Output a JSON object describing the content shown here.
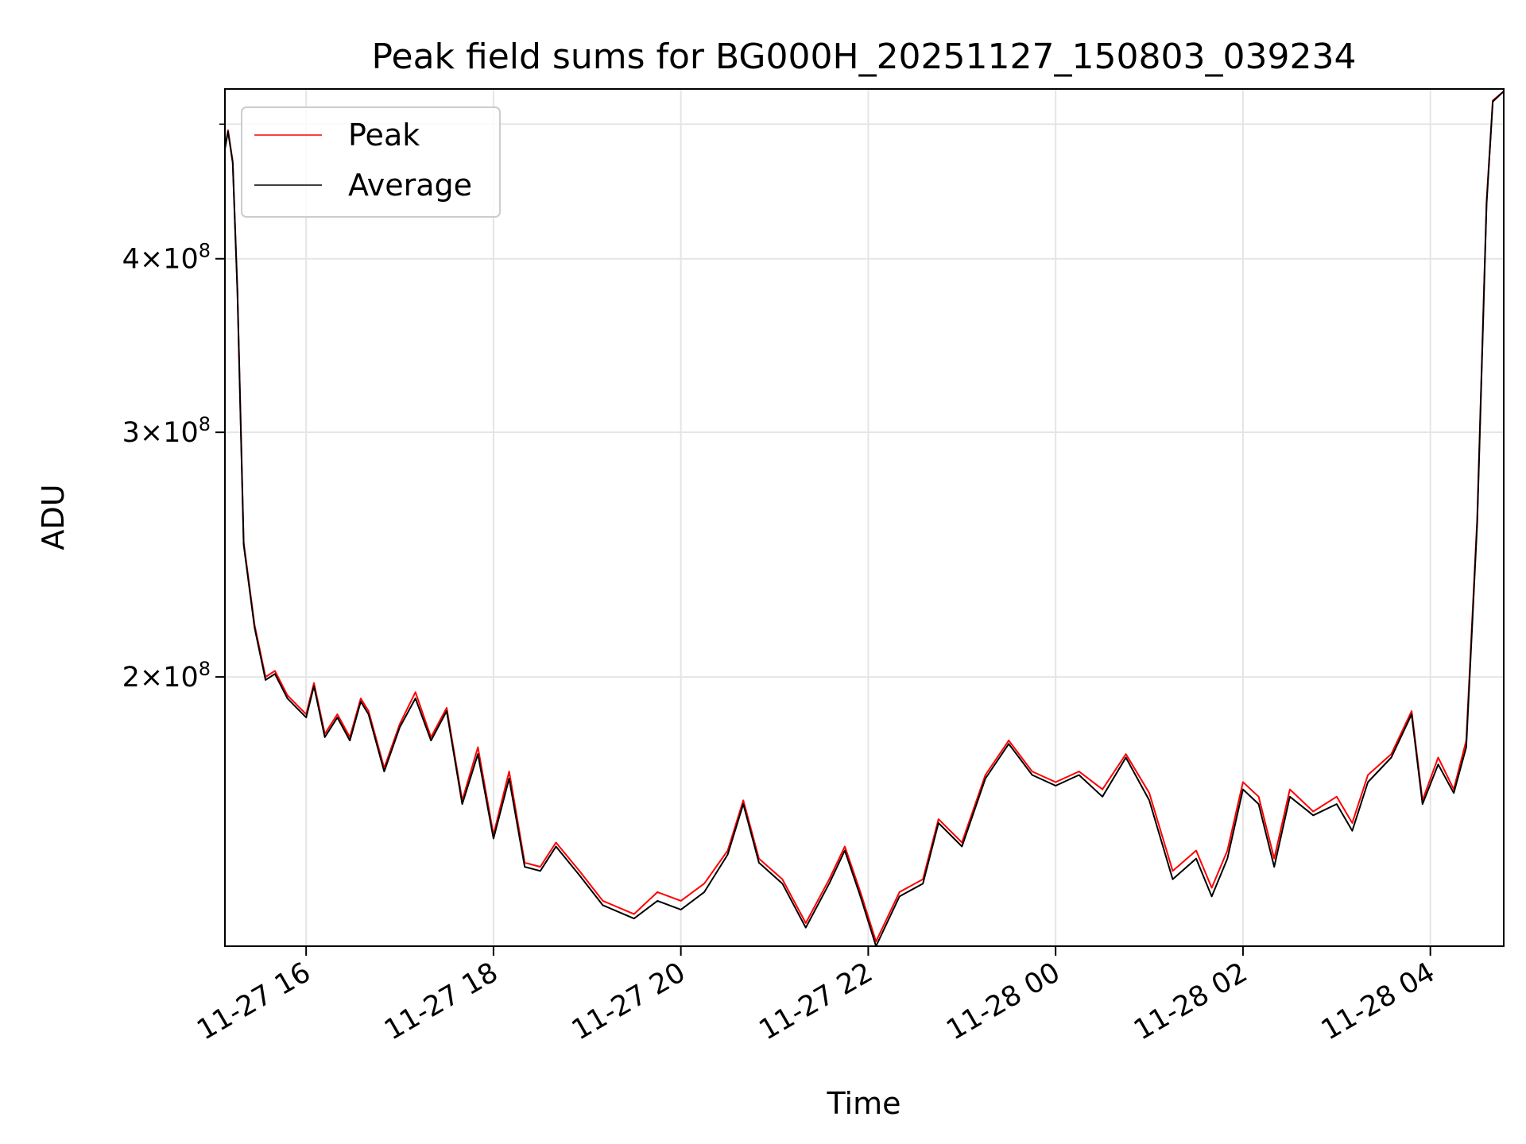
{
  "chart_data": {
    "type": "line",
    "title": "Peak field sums for BG000H_20251127_150803_039234",
    "xlabel": "Time",
    "ylabel": "ADU",
    "yscale": "log",
    "ylim": [
      128000000,
      530000000
    ],
    "xlim": [
      "2025-11-27T15:08",
      "2025-11-28T04:47"
    ],
    "grid": true,
    "legend_position": "upper left",
    "x_ticks": [
      {
        "value": "2025-11-27T16:00",
        "label": "11-27 16"
      },
      {
        "value": "2025-11-27T18:00",
        "label": "11-27 18"
      },
      {
        "value": "2025-11-27T20:00",
        "label": "11-27 20"
      },
      {
        "value": "2025-11-27T22:00",
        "label": "11-27 22"
      },
      {
        "value": "2025-11-28T00:00",
        "label": "11-28 00"
      },
      {
        "value": "2025-11-28T02:00",
        "label": "11-28 02"
      },
      {
        "value": "2025-11-28T04:00",
        "label": "11-28 04"
      }
    ],
    "y_ticks": [
      {
        "value": 200000000,
        "mantissa": "2",
        "exponent": "8"
      },
      {
        "value": 300000000,
        "mantissa": "3",
        "exponent": "8"
      },
      {
        "value": 400000000,
        "mantissa": "4",
        "exponent": "8"
      }
    ],
    "series": [
      {
        "name": "Peak",
        "color": "#ff0000",
        "points": [
          [
            "2025-11-27T15:08",
            480000000
          ],
          [
            "2025-11-27T15:10",
            495000000
          ],
          [
            "2025-11-27T15:13",
            470000000
          ],
          [
            "2025-11-27T15:16",
            380000000
          ],
          [
            "2025-11-27T15:20",
            250000000
          ],
          [
            "2025-11-27T15:27",
            218000000
          ],
          [
            "2025-11-27T15:34",
            200000000
          ],
          [
            "2025-11-27T15:40",
            202000000
          ],
          [
            "2025-11-27T15:48",
            194000000
          ],
          [
            "2025-11-27T16:00",
            188000000
          ],
          [
            "2025-11-27T16:05",
            198000000
          ],
          [
            "2025-11-27T16:12",
            182000000
          ],
          [
            "2025-11-27T16:20",
            188000000
          ],
          [
            "2025-11-27T16:28",
            181000000
          ],
          [
            "2025-11-27T16:35",
            193000000
          ],
          [
            "2025-11-27T16:40",
            189000000
          ],
          [
            "2025-11-27T16:50",
            172000000
          ],
          [
            "2025-11-27T17:00",
            185000000
          ],
          [
            "2025-11-27T17:10",
            195000000
          ],
          [
            "2025-11-27T17:20",
            181000000
          ],
          [
            "2025-11-27T17:30",
            190000000
          ],
          [
            "2025-11-27T17:40",
            163000000
          ],
          [
            "2025-11-27T17:50",
            178000000
          ],
          [
            "2025-11-27T18:00",
            154000000
          ],
          [
            "2025-11-27T18:10",
            171000000
          ],
          [
            "2025-11-27T18:20",
            147000000
          ],
          [
            "2025-11-27T18:30",
            146000000
          ],
          [
            "2025-11-27T18:40",
            152000000
          ],
          [
            "2025-11-27T18:55",
            145000000
          ],
          [
            "2025-11-27T19:10",
            138000000
          ],
          [
            "2025-11-27T19:30",
            135000000
          ],
          [
            "2025-11-27T19:45",
            140000000
          ],
          [
            "2025-11-27T20:00",
            138000000
          ],
          [
            "2025-11-27T20:15",
            142000000
          ],
          [
            "2025-11-27T20:30",
            150000000
          ],
          [
            "2025-11-27T20:40",
            163000000
          ],
          [
            "2025-11-27T20:50",
            148000000
          ],
          [
            "2025-11-27T21:05",
            143000000
          ],
          [
            "2025-11-27T21:20",
            133000000
          ],
          [
            "2025-11-27T21:35",
            143000000
          ],
          [
            "2025-11-27T21:45",
            151000000
          ],
          [
            "2025-11-27T21:55",
            140000000
          ],
          [
            "2025-11-27T22:05",
            129000000
          ],
          [
            "2025-11-27T22:20",
            140000000
          ],
          [
            "2025-11-27T22:35",
            143000000
          ],
          [
            "2025-11-27T22:45",
            158000000
          ],
          [
            "2025-11-27T23:00",
            152000000
          ],
          [
            "2025-11-27T23:15",
            170000000
          ],
          [
            "2025-11-27T23:30",
            180000000
          ],
          [
            "2025-11-27T23:45",
            171000000
          ],
          [
            "2025-11-28T00:00",
            168000000
          ],
          [
            "2025-11-28T00:15",
            171000000
          ],
          [
            "2025-11-28T00:30",
            166000000
          ],
          [
            "2025-11-28T00:45",
            176000000
          ],
          [
            "2025-11-28T01:00",
            165000000
          ],
          [
            "2025-11-28T01:15",
            145000000
          ],
          [
            "2025-11-28T01:30",
            150000000
          ],
          [
            "2025-11-28T01:40",
            141000000
          ],
          [
            "2025-11-28T01:50",
            150000000
          ],
          [
            "2025-11-28T02:00",
            168000000
          ],
          [
            "2025-11-28T02:10",
            164000000
          ],
          [
            "2025-11-28T02:20",
            148000000
          ],
          [
            "2025-11-28T02:30",
            166000000
          ],
          [
            "2025-11-28T02:45",
            160000000
          ],
          [
            "2025-11-28T03:00",
            164000000
          ],
          [
            "2025-11-28T03:10",
            157000000
          ],
          [
            "2025-11-28T03:20",
            170000000
          ],
          [
            "2025-11-28T03:35",
            176000000
          ],
          [
            "2025-11-28T03:48",
            189000000
          ],
          [
            "2025-11-28T03:55",
            163000000
          ],
          [
            "2025-11-28T04:05",
            175000000
          ],
          [
            "2025-11-28T04:15",
            166000000
          ],
          [
            "2025-11-28T04:23",
            180000000
          ],
          [
            "2025-11-28T04:30",
            260000000
          ],
          [
            "2025-11-28T04:36",
            440000000
          ],
          [
            "2025-11-28T04:40",
            520000000
          ],
          [
            "2025-11-28T04:47",
            528000000
          ]
        ]
      },
      {
        "name": "Average",
        "color": "#000000",
        "points": [
          [
            "2025-11-27T15:08",
            480000000
          ],
          [
            "2025-11-27T15:10",
            494000000
          ],
          [
            "2025-11-27T15:13",
            469000000
          ],
          [
            "2025-11-27T15:16",
            379000000
          ],
          [
            "2025-11-27T15:20",
            249000000
          ],
          [
            "2025-11-27T15:27",
            217000000
          ],
          [
            "2025-11-27T15:34",
            199000000
          ],
          [
            "2025-11-27T15:40",
            201000000
          ],
          [
            "2025-11-27T15:48",
            193000000
          ],
          [
            "2025-11-27T16:00",
            187000000
          ],
          [
            "2025-11-27T16:05",
            197000000
          ],
          [
            "2025-11-27T16:12",
            181000000
          ],
          [
            "2025-11-27T16:20",
            187000000
          ],
          [
            "2025-11-27T16:28",
            180000000
          ],
          [
            "2025-11-27T16:35",
            192000000
          ],
          [
            "2025-11-27T16:40",
            188000000
          ],
          [
            "2025-11-27T16:50",
            171000000
          ],
          [
            "2025-11-27T17:00",
            184000000
          ],
          [
            "2025-11-27T17:10",
            193000000
          ],
          [
            "2025-11-27T17:20",
            180000000
          ],
          [
            "2025-11-27T17:30",
            189000000
          ],
          [
            "2025-11-27T17:40",
            162000000
          ],
          [
            "2025-11-27T17:50",
            176000000
          ],
          [
            "2025-11-27T18:00",
            153000000
          ],
          [
            "2025-11-27T18:10",
            169000000
          ],
          [
            "2025-11-27T18:20",
            146000000
          ],
          [
            "2025-11-27T18:30",
            145000000
          ],
          [
            "2025-11-27T18:40",
            151000000
          ],
          [
            "2025-11-27T18:55",
            144000000
          ],
          [
            "2025-11-27T19:10",
            137000000
          ],
          [
            "2025-11-27T19:30",
            134000000
          ],
          [
            "2025-11-27T19:45",
            138000000
          ],
          [
            "2025-11-27T20:00",
            136000000
          ],
          [
            "2025-11-27T20:15",
            140000000
          ],
          [
            "2025-11-27T20:30",
            149000000
          ],
          [
            "2025-11-27T20:40",
            162000000
          ],
          [
            "2025-11-27T20:50",
            147000000
          ],
          [
            "2025-11-27T21:05",
            142000000
          ],
          [
            "2025-11-27T21:20",
            132000000
          ],
          [
            "2025-11-27T21:35",
            142000000
          ],
          [
            "2025-11-27T21:45",
            150000000
          ],
          [
            "2025-11-27T21:55",
            139000000
          ],
          [
            "2025-11-27T22:05",
            128000000
          ],
          [
            "2025-11-27T22:20",
            139000000
          ],
          [
            "2025-11-27T22:35",
            142000000
          ],
          [
            "2025-11-27T22:45",
            157000000
          ],
          [
            "2025-11-27T23:00",
            151000000
          ],
          [
            "2025-11-27T23:15",
            169000000
          ],
          [
            "2025-11-27T23:30",
            179000000
          ],
          [
            "2025-11-27T23:45",
            170000000
          ],
          [
            "2025-11-28T00:00",
            167000000
          ],
          [
            "2025-11-28T00:15",
            170000000
          ],
          [
            "2025-11-28T00:30",
            164000000
          ],
          [
            "2025-11-28T00:45",
            175000000
          ],
          [
            "2025-11-28T01:00",
            163000000
          ],
          [
            "2025-11-28T01:15",
            143000000
          ],
          [
            "2025-11-28T01:30",
            148000000
          ],
          [
            "2025-11-28T01:40",
            139000000
          ],
          [
            "2025-11-28T01:50",
            148000000
          ],
          [
            "2025-11-28T02:00",
            166000000
          ],
          [
            "2025-11-28T02:10",
            162000000
          ],
          [
            "2025-11-28T02:20",
            146000000
          ],
          [
            "2025-11-28T02:30",
            164000000
          ],
          [
            "2025-11-28T02:45",
            159000000
          ],
          [
            "2025-11-28T03:00",
            162000000
          ],
          [
            "2025-11-28T03:10",
            155000000
          ],
          [
            "2025-11-28T03:20",
            168000000
          ],
          [
            "2025-11-28T03:35",
            175000000
          ],
          [
            "2025-11-28T03:48",
            188000000
          ],
          [
            "2025-11-28T03:55",
            162000000
          ],
          [
            "2025-11-28T04:05",
            173000000
          ],
          [
            "2025-11-28T04:15",
            165000000
          ],
          [
            "2025-11-28T04:23",
            178000000
          ],
          [
            "2025-11-28T04:30",
            258000000
          ],
          [
            "2025-11-28T04:36",
            438000000
          ],
          [
            "2025-11-28T04:40",
            519000000
          ],
          [
            "2025-11-28T04:47",
            528000000
          ]
        ]
      }
    ]
  }
}
